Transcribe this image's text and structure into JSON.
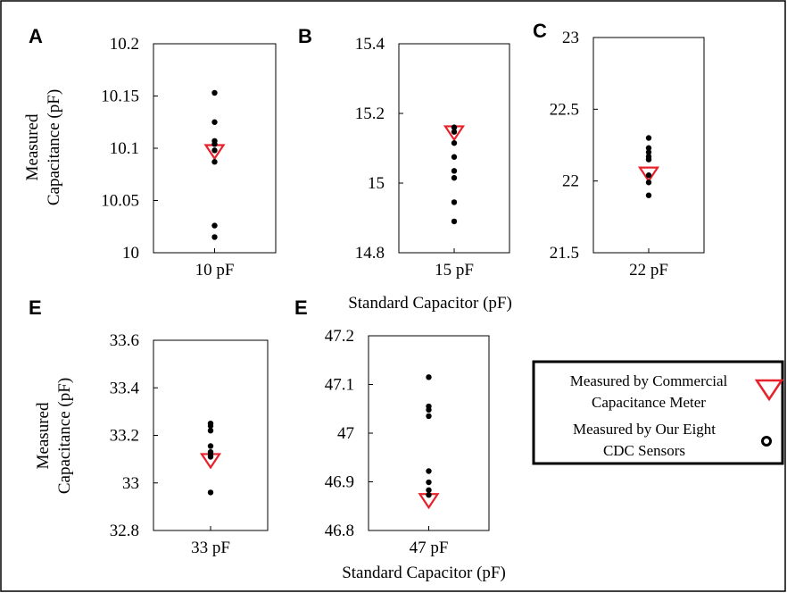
{
  "colors": {
    "meter_marker": "#e8202a",
    "sensor_marker": "#000000",
    "frame": "#000000"
  },
  "shared_labels": {
    "ylabel_line1": "Measured",
    "ylabel_line2": "Capacitance (pF)",
    "xlabel": "Standard Capacitor (pF)"
  },
  "legend": {
    "meter_line1": "Measured by Commercial",
    "meter_line2": "Capacitance Meter",
    "sensor_line1": "Measured by Our Eight",
    "sensor_line2": "CDC Sensors"
  },
  "chart_data": [
    {
      "panel": "A",
      "type": "scatter",
      "category": "10 pF",
      "ylim": [
        10,
        10.2
      ],
      "yticks": [
        "10",
        "10.05",
        "10.1",
        "10.15",
        "10.2"
      ],
      "series": [
        {
          "name": "Measured by Our Eight CDC Sensors",
          "values": [
            10.153,
            10.125,
            10.107,
            10.104,
            10.098,
            10.087,
            10.026,
            10.015
          ]
        },
        {
          "name": "Measured by Commercial Capacitance Meter",
          "values": [
            10.097
          ]
        }
      ]
    },
    {
      "panel": "B",
      "type": "scatter",
      "category": "15 pF",
      "ylim": [
        14.8,
        15.4
      ],
      "yticks": [
        "14.8",
        "15",
        "15.2",
        "15.4"
      ],
      "series": [
        {
          "name": "Measured by Our Eight CDC Sensors",
          "values": [
            15.16,
            15.147,
            15.115,
            15.075,
            15.035,
            15.015,
            14.945,
            14.89
          ]
        },
        {
          "name": "Measured by Commercial Capacitance Meter",
          "values": [
            15.145
          ]
        }
      ]
    },
    {
      "panel": "C",
      "type": "scatter",
      "category": "22 pF",
      "ylim": [
        21.5,
        23
      ],
      "yticks": [
        "21.5",
        "22",
        "22.5",
        "23"
      ],
      "series": [
        {
          "name": "Measured by Our Eight CDC Sensors",
          "values": [
            22.3,
            22.23,
            22.2,
            22.17,
            22.15,
            22.04,
            21.99,
            21.9
          ]
        },
        {
          "name": "Measured by Commercial Capacitance Meter",
          "values": [
            22.05
          ]
        }
      ]
    },
    {
      "panel": "E",
      "type": "scatter",
      "category": "33 pF",
      "ylim": [
        32.8,
        33.6
      ],
      "yticks": [
        "32.8",
        "33",
        "33.2",
        "33.4",
        "33.6"
      ],
      "series": [
        {
          "name": "Measured by Our Eight CDC Sensors",
          "values": [
            33.25,
            33.24,
            33.22,
            33.155,
            33.13,
            33.12,
            33.11,
            32.96
          ]
        },
        {
          "name": "Measured by Commercial Capacitance Meter",
          "values": [
            33.095
          ]
        }
      ]
    },
    {
      "panel": "E",
      "type": "scatter",
      "category": "47 pF",
      "ylim": [
        46.8,
        47.2
      ],
      "yticks": [
        "46.8",
        "46.9",
        "47",
        "47.1",
        "47.2"
      ],
      "series": [
        {
          "name": "Measured by Our Eight CDC Sensors",
          "values": [
            47.115,
            47.055,
            47.048,
            47.035,
            46.922,
            46.899,
            46.883,
            46.873
          ]
        },
        {
          "name": "Measured by Commercial Capacitance Meter",
          "values": [
            46.862
          ]
        }
      ]
    }
  ]
}
